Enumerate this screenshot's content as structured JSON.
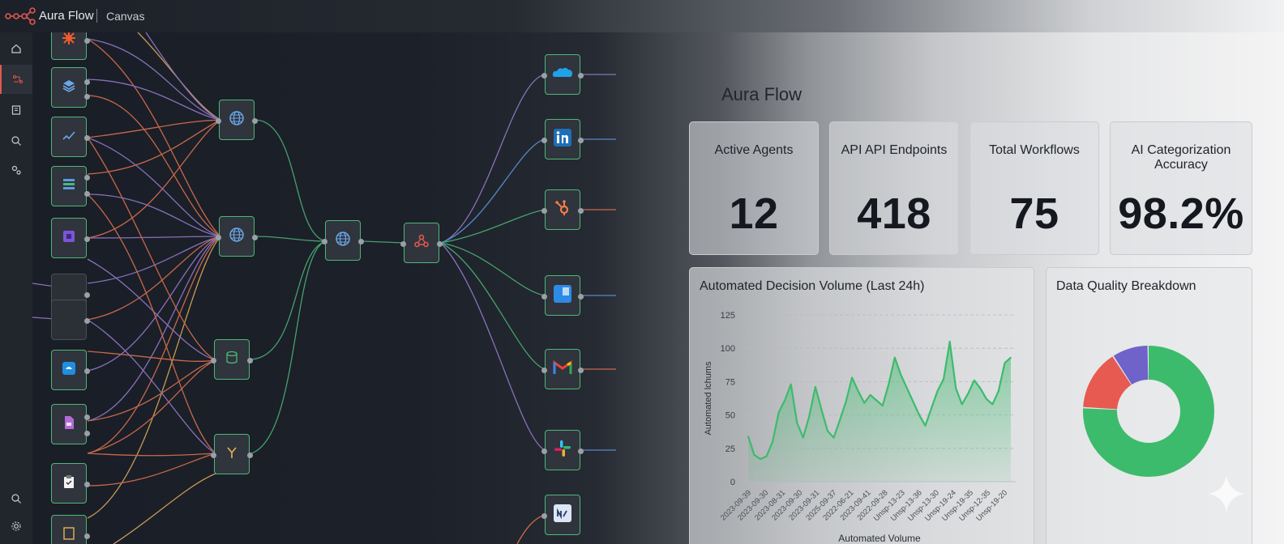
{
  "app": {
    "title": "Aura Flow",
    "breadcrumb": "Canvas"
  },
  "sidebar": {
    "items": [
      {
        "icon": "home-icon"
      },
      {
        "icon": "workflow-icon",
        "active": true
      },
      {
        "icon": "document-icon"
      },
      {
        "icon": "search-icon"
      },
      {
        "icon": "settings-cog-icon"
      }
    ],
    "bottom": [
      {
        "icon": "search-icon"
      },
      {
        "icon": "gear-icon"
      }
    ]
  },
  "colors": {
    "accent": "#4cb878",
    "brand": "#e0584f",
    "slice_green": "#3dbb6c",
    "slice_red": "#e65a52",
    "slice_purple": "#6f63c9"
  },
  "dashboard": {
    "title": "Aura Flow",
    "stats": [
      {
        "label": "Active Agents",
        "value": "12"
      },
      {
        "label": "API API Endpoints",
        "value": "418"
      },
      {
        "label": "Total Workflows",
        "value": "75"
      },
      {
        "label": "AI Categorization Accuracy",
        "value": "98.2%"
      }
    ],
    "line_title": "Automated Decision Volume (Last 24h)",
    "donut_title": "Data Quality Breakdown"
  },
  "chart_data": [
    {
      "type": "area",
      "title": "Automated Decision Volume (Last 24h)",
      "xlabel": "Automated Volume",
      "ylabel": "Automated lchums",
      "ylim": [
        0,
        125
      ],
      "yticks": [
        0,
        25,
        50,
        75,
        100,
        125
      ],
      "xticks": [
        "2023-09-39",
        "2023-09-30",
        "2023-08-31",
        "2023-09-30",
        "2023-09-31",
        "2025-09-37",
        "2022-06-21",
        "2023-09-41",
        "2022-09-28",
        "Unsp-13-23",
        "Unsp-13-36",
        "Unsp-13-30",
        "Unsp-19-24",
        "Unsp-19-35",
        "Unsp-12-35",
        "Unsp-19-20"
      ],
      "grid": true,
      "values": [
        34,
        20,
        17,
        19,
        30,
        52,
        61,
        73,
        44,
        33,
        49,
        71,
        54,
        38,
        33,
        46,
        60,
        78,
        68,
        59,
        65,
        61,
        57,
        73,
        93,
        80,
        70,
        60,
        50,
        42,
        55,
        68,
        77,
        105,
        70,
        58,
        66,
        76,
        70,
        62,
        58,
        68,
        89,
        93
      ]
    },
    {
      "type": "pie",
      "title": "Data Quality Breakdown",
      "series": [
        {
          "values": [
            76,
            15,
            9
          ],
          "colors": [
            "#3dbb6c",
            "#e65a52",
            "#6f63c9"
          ]
        }
      ]
    }
  ]
}
